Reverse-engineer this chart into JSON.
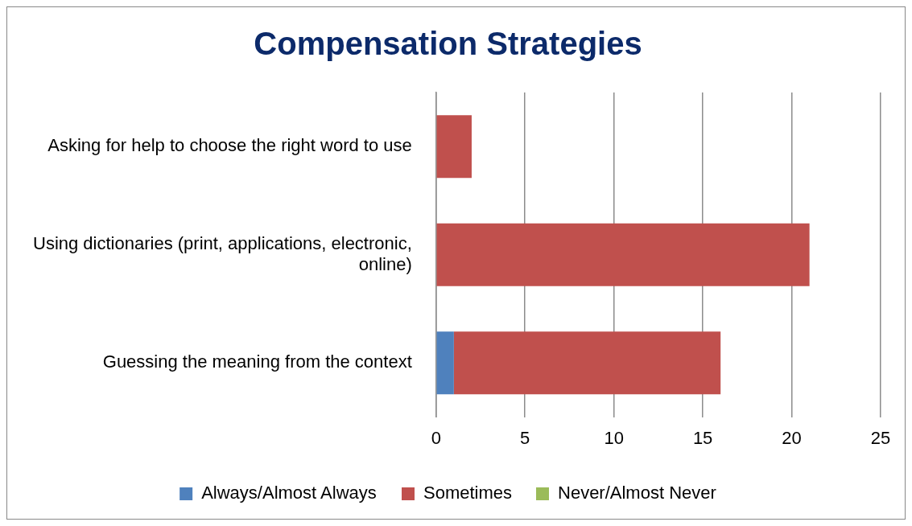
{
  "chart_data": {
    "type": "bar",
    "title": "Compensation Strategies",
    "orientation": "horizontal",
    "stacked": true,
    "categories": [
      "Asking for help to choose the right word to use",
      "Using dictionaries (print, applications, electronic, online)",
      "Guessing the meaning from the context"
    ],
    "series": [
      {
        "name": "Always/Almost Always",
        "color": "#4f81bd",
        "values": [
          0,
          0,
          1
        ]
      },
      {
        "name": "Sometimes",
        "color": "#c0504d",
        "values": [
          2,
          21,
          15
        ]
      },
      {
        "name": "Never/Almost Never",
        "color": "#9bbb59",
        "values": [
          0,
          0,
          0
        ]
      }
    ],
    "xlim": [
      0,
      25
    ],
    "xticks": [
      0,
      5,
      10,
      15,
      20,
      25
    ],
    "grid": "x",
    "legend": "bottom"
  }
}
